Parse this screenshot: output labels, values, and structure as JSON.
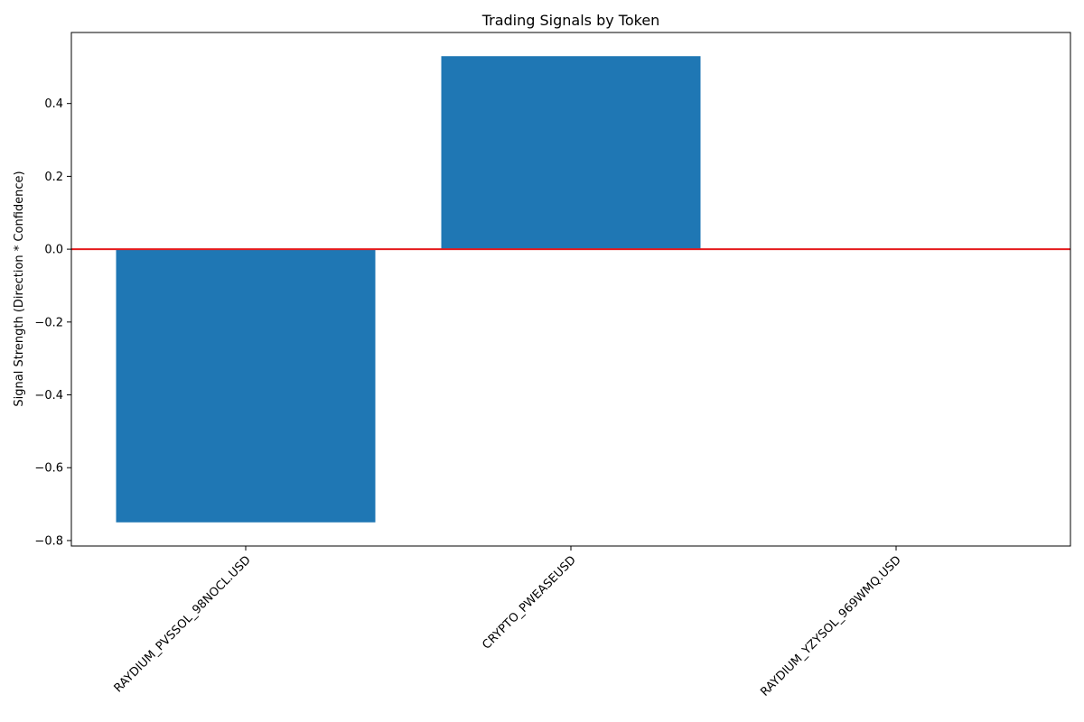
{
  "chart_data": {
    "type": "bar",
    "title": "Trading Signals by Token",
    "xlabel": "",
    "ylabel": "Signal Strength (Direction * Confidence)",
    "categories": [
      "RAYDIUM_PVSSOL_98NOCL.USD",
      "CRYPTO_PWEASEUSD",
      "RAYDIUM_YZYSOL_969WMQ.USD"
    ],
    "values": [
      -0.75,
      0.53,
      0.0
    ],
    "ylim": [
      -0.815,
      0.595
    ],
    "yticks": [
      -0.8,
      -0.6,
      -0.4,
      -0.2,
      0.0,
      0.2,
      0.4
    ],
    "ytick_labels": [
      "−0.8",
      "−0.6",
      "−0.4",
      "−0.2",
      "0.0",
      "0.2",
      "0.4"
    ],
    "reference_line": {
      "y": 0.0,
      "color": "#e41a1c"
    },
    "bar_color": "#1f77b4",
    "grid": false,
    "legend": "none"
  }
}
